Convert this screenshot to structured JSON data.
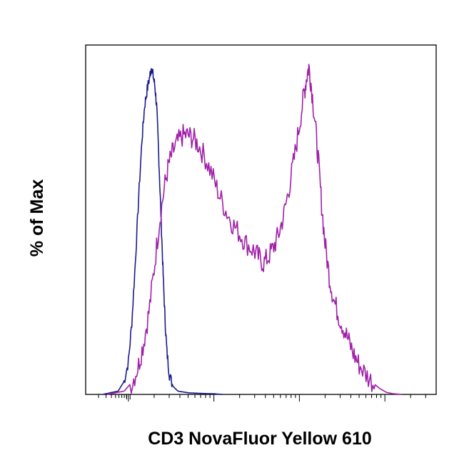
{
  "chart_data": {
    "type": "line",
    "title": "",
    "xlabel": "CD3 NovaFluor Yellow 610",
    "ylabel": "% of Max",
    "xscale": "log (biexponential)",
    "grid": false,
    "legend": "none",
    "x_tick_labels": [],
    "y_tick_labels": [],
    "ylim": [
      0,
      100
    ],
    "series": [
      {
        "color": "#1a1a8c",
        "points": [
          [
            -0.3,
            0
          ],
          [
            -0.12,
            1
          ],
          [
            -0.05,
            4
          ],
          [
            0.0,
            10
          ],
          [
            0.04,
            22
          ],
          [
            0.08,
            40
          ],
          [
            0.12,
            60
          ],
          [
            0.16,
            78
          ],
          [
            0.19,
            88
          ],
          [
            0.22,
            93
          ],
          [
            0.25,
            97
          ],
          [
            0.27,
            100
          ],
          [
            0.29,
            97
          ],
          [
            0.31,
            94
          ],
          [
            0.33,
            88
          ],
          [
            0.35,
            76
          ],
          [
            0.37,
            62
          ],
          [
            0.39,
            48
          ],
          [
            0.41,
            34
          ],
          [
            0.43,
            22
          ],
          [
            0.45,
            13
          ],
          [
            0.48,
            6
          ],
          [
            0.52,
            2.5
          ],
          [
            0.58,
            1
          ],
          [
            0.7,
            0.5
          ],
          [
            0.85,
            0.3
          ],
          [
            1.0,
            0.2
          ],
          [
            1.1,
            0
          ]
        ]
      },
      {
        "color": "#a020a8",
        "points": [
          [
            -0.25,
            0
          ],
          [
            -0.05,
            1
          ],
          [
            0.05,
            4
          ],
          [
            0.12,
            9
          ],
          [
            0.18,
            16
          ],
          [
            0.24,
            25
          ],
          [
            0.3,
            38
          ],
          [
            0.36,
            52
          ],
          [
            0.42,
            63
          ],
          [
            0.47,
            70
          ],
          [
            0.52,
            74
          ],
          [
            0.58,
            77
          ],
          [
            0.64,
            79
          ],
          [
            0.7,
            79
          ],
          [
            0.76,
            78
          ],
          [
            0.82,
            76
          ],
          [
            0.9,
            72
          ],
          [
            0.98,
            67
          ],
          [
            1.06,
            61
          ],
          [
            1.14,
            56
          ],
          [
            1.22,
            52
          ],
          [
            1.3,
            49
          ],
          [
            1.38,
            46
          ],
          [
            1.46,
            44
          ],
          [
            1.52,
            42
          ],
          [
            1.58,
            40
          ],
          [
            1.64,
            42
          ],
          [
            1.7,
            45
          ],
          [
            1.76,
            49
          ],
          [
            1.82,
            55
          ],
          [
            1.88,
            63
          ],
          [
            1.94,
            72
          ],
          [
            2.0,
            82
          ],
          [
            2.05,
            91
          ],
          [
            2.08,
            96
          ],
          [
            2.11,
            100
          ],
          [
            2.14,
            94
          ],
          [
            2.18,
            84
          ],
          [
            2.22,
            72
          ],
          [
            2.26,
            58
          ],
          [
            2.3,
            46
          ],
          [
            2.35,
            36
          ],
          [
            2.4,
            29
          ],
          [
            2.46,
            24
          ],
          [
            2.52,
            20
          ],
          [
            2.58,
            16
          ],
          [
            2.64,
            12
          ],
          [
            2.7,
            9
          ],
          [
            2.78,
            6
          ],
          [
            2.86,
            3.5
          ],
          [
            2.94,
            1.8
          ],
          [
            3.02,
            0.6
          ],
          [
            3.1,
            0.2
          ],
          [
            3.2,
            0
          ]
        ]
      }
    ]
  }
}
